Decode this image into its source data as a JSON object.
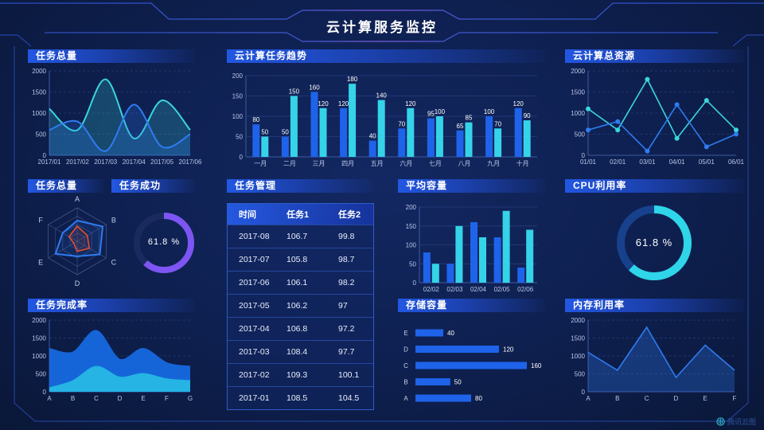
{
  "header": {
    "title": "云计算服务监控"
  },
  "watermark": {
    "label": "腾讯云图"
  },
  "colors": {
    "background": "#0e2050",
    "panel_title_gradient_start": "#2257e2",
    "bar_blue": "#1e63ea",
    "bar_cyan": "#35d3e8",
    "line_cyan": "#3bd6db",
    "line_blue": "#2f7bf0",
    "donut_purple": "#7d55f2",
    "donut_cyan": "#2fd5e8",
    "radar_blue": "#2f7bf0",
    "radar_red": "#f0502a",
    "axis_text": "#b9c6e8",
    "grid": "#2a4180"
  },
  "panels": {
    "task_total_line": {
      "title": "任务总量"
    },
    "task_trend": {
      "title": "云计算任务趋势"
    },
    "cloud_resources": {
      "title": "云计算总资源"
    },
    "task_total_radar": {
      "title": "任务总量"
    },
    "task_success": {
      "title": "任务成功",
      "value": "61.8 %"
    },
    "task_manage": {
      "title": "任务管理",
      "columns": [
        "时间",
        "任务1",
        "任务2"
      ],
      "rows": [
        [
          "2017-08",
          "106.7",
          "99.8"
        ],
        [
          "2017-07",
          "105.8",
          "98.7"
        ],
        [
          "2017-06",
          "106.1",
          "98.2"
        ],
        [
          "2017-05",
          "106.2",
          "97"
        ],
        [
          "2017-04",
          "106.8",
          "97.2"
        ],
        [
          "2017-03",
          "108.4",
          "97.7"
        ],
        [
          "2017-02",
          "109.3",
          "100.1"
        ],
        [
          "2017-01",
          "108.5",
          "104.5"
        ]
      ]
    },
    "avg_capacity": {
      "title": "平均容量"
    },
    "cpu": {
      "title": "CPU利用率",
      "value": "61.8 %"
    },
    "task_complete": {
      "title": "任务完成率"
    },
    "storage": {
      "title": "存储容量"
    },
    "memory": {
      "title": "内存利用率"
    }
  },
  "chart_data": [
    {
      "id": "task_total_line",
      "type": "area_smooth",
      "title": "任务总量",
      "x": [
        "2017/01",
        "2017/02",
        "2017/03",
        "2017/04",
        "2017/05",
        "2017/06"
      ],
      "series": [
        {
          "name": "series-cyan",
          "color": "#3bd6db",
          "values": [
            1100,
            600,
            1800,
            400,
            1300,
            600
          ]
        },
        {
          "name": "series-blue",
          "color": "#2f7bf0",
          "values": [
            600,
            800,
            100,
            1200,
            200,
            500
          ]
        }
      ],
      "ylim": [
        0,
        2000
      ],
      "yticks": [
        0,
        500,
        1000,
        1500,
        2000
      ],
      "grid": "dashed",
      "fill_opacity": 0.22
    },
    {
      "id": "task_trend",
      "type": "bar",
      "title": "云计算任务趋势",
      "categories": [
        "一月",
        "二月",
        "三月",
        "四月",
        "五月",
        "六月",
        "七月",
        "八月",
        "九月",
        "十月"
      ],
      "series": [
        {
          "name": "任务1",
          "color": "#1e63ea",
          "values": [
            80,
            50,
            160,
            120,
            40,
            70,
            95,
            65,
            100,
            120
          ]
        },
        {
          "name": "任务2",
          "color": "#35d3e8",
          "values": [
            50,
            150,
            120,
            180,
            140,
            120,
            100,
            85,
            70,
            90
          ]
        }
      ],
      "ylim": [
        0,
        200
      ],
      "yticks": [
        0,
        50,
        100,
        150,
        200
      ],
      "value_labels": true
    },
    {
      "id": "cloud_resources",
      "type": "line",
      "title": "云计算总资源",
      "x": [
        "01/01",
        "02/01",
        "03/01",
        "04/01",
        "05/01",
        "06/01"
      ],
      "series": [
        {
          "name": "series-cyan",
          "color": "#3bd6db",
          "values": [
            1100,
            600,
            1800,
            400,
            1300,
            600
          ]
        },
        {
          "name": "series-blue",
          "color": "#2f7bf0",
          "values": [
            600,
            800,
            100,
            1200,
            200,
            500
          ]
        }
      ],
      "ylim": [
        0,
        2000
      ],
      "yticks": [
        0,
        500,
        1000,
        1500,
        2000
      ],
      "grid": "dashed",
      "markers": true
    },
    {
      "id": "task_total_radar",
      "type": "radar",
      "title": "任务总量",
      "axes": [
        "A",
        "B",
        "C",
        "D",
        "E",
        "F"
      ],
      "max": 100,
      "series": [
        {
          "name": "radar-blue",
          "color": "#2f7bf0",
          "values": [
            62,
            88,
            78,
            45,
            75,
            50
          ]
        },
        {
          "name": "radar-red",
          "color": "#f0502a",
          "values": [
            45,
            35,
            42,
            30,
            12,
            28
          ]
        }
      ]
    },
    {
      "id": "task_success",
      "type": "donut",
      "title": "任务成功",
      "percent": 61.8,
      "label": "61.8 %",
      "color": "#7d55f2",
      "track": "#1a2a5e"
    },
    {
      "id": "avg_capacity",
      "type": "bar",
      "title": "平均容量",
      "categories": [
        "02/02",
        "02/03",
        "02/04",
        "02/05",
        "02/06"
      ],
      "series": [
        {
          "name": "容量1",
          "color": "#1e63ea",
          "values": [
            80,
            50,
            160,
            120,
            40
          ]
        },
        {
          "name": "容量2",
          "color": "#35d3e8",
          "values": [
            50,
            150,
            120,
            190,
            140
          ]
        }
      ],
      "ylim": [
        0,
        200
      ],
      "yticks": [
        0,
        50,
        100,
        150,
        200
      ],
      "value_labels": false
    },
    {
      "id": "cpu",
      "type": "donut",
      "title": "CPU利用率",
      "percent": 61.8,
      "label": "61.8 %",
      "color": "#2fd5e8",
      "track": "#17418c"
    },
    {
      "id": "task_complete",
      "type": "area_smooth",
      "title": "任务完成率",
      "x": [
        "A",
        "B",
        "C",
        "D",
        "E",
        "F",
        "G"
      ],
      "series": [
        {
          "name": "complete-blue",
          "color": "#1565d8",
          "values": [
            1200,
            1100,
            1700,
            900,
            1200,
            800,
            700
          ]
        },
        {
          "name": "complete-cyan",
          "color": "#25b4e4",
          "values": [
            100,
            300,
            700,
            400,
            500,
            350,
            300
          ]
        }
      ],
      "ylim": [
        0,
        2000
      ],
      "yticks": [
        0,
        500,
        1000,
        1500,
        2000
      ],
      "grid": "dashed",
      "fill_opacity": 1,
      "opaque": true
    },
    {
      "id": "storage",
      "type": "hbar",
      "title": "存储容量",
      "categories": [
        "E",
        "D",
        "C",
        "B",
        "A"
      ],
      "values": [
        40,
        120,
        160,
        50,
        80
      ],
      "xmax": 160,
      "color": "#1e63ea"
    },
    {
      "id": "memory",
      "type": "line_area",
      "title": "内存利用率",
      "x": [
        "A",
        "B",
        "C",
        "D",
        "E",
        "F"
      ],
      "series": [
        {
          "name": "memory-blue",
          "color": "#2f7bf0",
          "values": [
            1100,
            600,
            1800,
            400,
            1300,
            600
          ]
        }
      ],
      "ylim": [
        0,
        2000
      ],
      "yticks": [
        0,
        500,
        1000,
        1500,
        2000
      ],
      "grid": "dashed",
      "fill_opacity": 0.3
    }
  ]
}
